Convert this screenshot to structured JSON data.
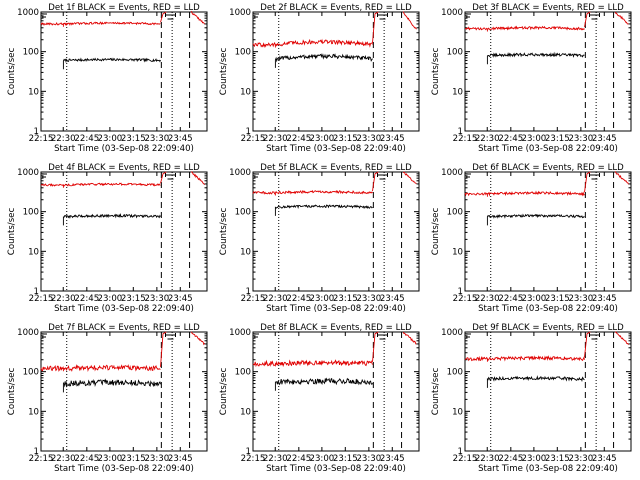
{
  "figure": {
    "colors": {
      "events": "#000000",
      "lld": "#e00000",
      "axes": "#000000",
      "background": "#ffffff"
    }
  },
  "chart_data": [
    {
      "type": "line",
      "title": "Det 1f BLACK = Events, RED = LLD",
      "xlabel": "Start Time (03-Sep-08 22:09:40)",
      "ylabel": "Counts/sec",
      "x_ticks": [
        "22:15",
        "22:30",
        "22:45",
        "23:00",
        "23:15",
        "23:30",
        "23:45"
      ],
      "y_scale": "log",
      "ylim": [
        1,
        1000
      ],
      "y_ticks": [
        "1",
        "10",
        "100",
        "1000"
      ],
      "series": [
        {
          "name": "Events",
          "color": "#000000",
          "level": 60,
          "noise": 0.03
        },
        {
          "name": "LLD",
          "color": "#e00000",
          "level": 500,
          "noise": 0.025
        }
      ]
    },
    {
      "type": "line",
      "title": "Det 2f BLACK = Events, RED = LLD",
      "xlabel": "Start Time (03-Sep-08 22:09:40)",
      "ylabel": "Counts/sec",
      "x_ticks": [
        "22:15",
        "22:30",
        "22:45",
        "23:00",
        "23:15",
        "23:30",
        "23:45"
      ],
      "y_scale": "log",
      "ylim": [
        1,
        1000
      ],
      "y_ticks": [
        "1",
        "10",
        "100",
        "1000"
      ],
      "series": [
        {
          "name": "Events",
          "color": "#000000",
          "level": 65,
          "noise": 0.05
        },
        {
          "name": "LLD",
          "color": "#e00000",
          "level": 150,
          "noise": 0.05
        }
      ]
    },
    {
      "type": "line",
      "title": "Det 3f BLACK = Events, RED = LLD",
      "xlabel": "Start Time (03-Sep-08 22:09:40)",
      "ylabel": "Counts/sec",
      "x_ticks": [
        "22:15",
        "22:30",
        "22:45",
        "23:00",
        "23:15",
        "23:30",
        "23:45"
      ],
      "y_scale": "log",
      "ylim": [
        1,
        1000
      ],
      "y_ticks": [
        "1",
        "10",
        "100",
        "1000"
      ],
      "series": [
        {
          "name": "Events",
          "color": "#000000",
          "level": 80,
          "noise": 0.035
        },
        {
          "name": "LLD",
          "color": "#e00000",
          "level": 380,
          "noise": 0.03
        }
      ]
    },
    {
      "type": "line",
      "title": "Det 4f BLACK = Events, RED = LLD",
      "xlabel": "Start Time (03-Sep-08 22:09:40)",
      "ylabel": "Counts/sec",
      "x_ticks": [
        "22:15",
        "22:30",
        "22:45",
        "23:00",
        "23:15",
        "23:30",
        "23:45"
      ],
      "y_scale": "log",
      "ylim": [
        1,
        1000
      ],
      "y_ticks": [
        "1",
        "10",
        "100",
        "1000"
      ],
      "series": [
        {
          "name": "Events",
          "color": "#000000",
          "level": 75,
          "noise": 0.03
        },
        {
          "name": "LLD",
          "color": "#e00000",
          "level": 470,
          "noise": 0.025
        }
      ]
    },
    {
      "type": "line",
      "title": "Det 5f BLACK = Events, RED = LLD",
      "xlabel": "Start Time (03-Sep-08 22:09:40)",
      "ylabel": "Counts/sec",
      "x_ticks": [
        "22:15",
        "22:30",
        "22:45",
        "23:00",
        "23:15",
        "23:30",
        "23:45"
      ],
      "y_scale": "log",
      "ylim": [
        1,
        1000
      ],
      "y_ticks": [
        "1",
        "10",
        "100",
        "1000"
      ],
      "series": [
        {
          "name": "Events",
          "color": "#000000",
          "level": 130,
          "noise": 0.03
        },
        {
          "name": "LLD",
          "color": "#e00000",
          "level": 300,
          "noise": 0.03
        }
      ]
    },
    {
      "type": "line",
      "title": "Det 6f BLACK = Events, RED = LLD",
      "xlabel": "Start Time (03-Sep-08 22:09:40)",
      "ylabel": "Counts/sec",
      "x_ticks": [
        "22:15",
        "22:30",
        "22:45",
        "23:00",
        "23:15",
        "23:30",
        "23:45"
      ],
      "y_scale": "log",
      "ylim": [
        1,
        1000
      ],
      "y_ticks": [
        "1",
        "10",
        "100",
        "1000"
      ],
      "series": [
        {
          "name": "Events",
          "color": "#000000",
          "level": 75,
          "noise": 0.03
        },
        {
          "name": "LLD",
          "color": "#e00000",
          "level": 280,
          "noise": 0.03
        }
      ]
    },
    {
      "type": "line",
      "title": "Det 7f BLACK = Events, RED = LLD",
      "xlabel": "Start Time (03-Sep-08 22:09:40)",
      "ylabel": "Counts/sec",
      "x_ticks": [
        "22:15",
        "22:30",
        "22:45",
        "23:00",
        "23:15",
        "23:30",
        "23:45"
      ],
      "y_scale": "log",
      "ylim": [
        1,
        1000
      ],
      "y_ticks": [
        "1",
        "10",
        "100",
        "1000"
      ],
      "series": [
        {
          "name": "Events",
          "color": "#000000",
          "level": 50,
          "noise": 0.07
        },
        {
          "name": "LLD",
          "color": "#e00000",
          "level": 120,
          "noise": 0.06
        }
      ]
    },
    {
      "type": "line",
      "title": "Det 8f BLACK = Events, RED = LLD",
      "xlabel": "Start Time (03-Sep-08 22:09:40)",
      "ylabel": "Counts/sec",
      "x_ticks": [
        "22:15",
        "22:30",
        "22:45",
        "23:00",
        "23:15",
        "23:30",
        "23:45"
      ],
      "y_scale": "log",
      "ylim": [
        1,
        1000
      ],
      "y_ticks": [
        "1",
        "10",
        "100",
        "1000"
      ],
      "series": [
        {
          "name": "Events",
          "color": "#000000",
          "level": 55,
          "noise": 0.07
        },
        {
          "name": "LLD",
          "color": "#e00000",
          "level": 160,
          "noise": 0.06
        }
      ]
    },
    {
      "type": "line",
      "title": "Det 9f BLACK = Events, RED = LLD",
      "xlabel": "Start Time (03-Sep-08 22:09:40)",
      "ylabel": "Counts/sec",
      "x_ticks": [
        "22:15",
        "22:30",
        "22:45",
        "23:00",
        "23:15",
        "23:30",
        "23:45"
      ],
      "y_scale": "log",
      "ylim": [
        1,
        1000
      ],
      "y_ticks": [
        "1",
        "10",
        "100",
        "1000"
      ],
      "series": [
        {
          "name": "Events",
          "color": "#000000",
          "level": 65,
          "noise": 0.04
        },
        {
          "name": "LLD",
          "color": "#e00000",
          "level": 210,
          "noise": 0.04
        }
      ]
    }
  ]
}
